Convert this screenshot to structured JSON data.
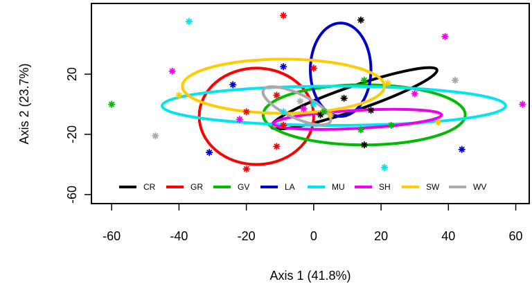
{
  "chart_data": {
    "type": "scatter",
    "title": "",
    "xlabel": "Axis 1 (41.8%)",
    "ylabel": "Axis 2 (23.7%)",
    "xlim": [
      -66,
      64
    ],
    "ylim": [
      -66,
      67
    ],
    "xticks": [
      -60,
      -40,
      -20,
      0,
      20,
      40,
      60
    ],
    "xtick_labels": [
      "-60",
      "-40",
      "-20",
      "0",
      "20",
      "40",
      "60"
    ],
    "yticks": [
      -60,
      -20,
      20
    ],
    "ytick_labels": [
      "-60",
      "-20",
      "20"
    ],
    "grid": false,
    "legend_position": "bottom",
    "series": [
      {
        "name": "CR",
        "color": "#000000",
        "points": [
          [
            14,
            56
          ],
          [
            9,
            4
          ],
          [
            2,
            -7
          ],
          [
            17,
            -4
          ],
          [
            15,
            -27
          ]
        ],
        "ellipse": {
          "cx": 12,
          "cy": 4,
          "rx": 26,
          "ry": 8,
          "angle": -19
        }
      },
      {
        "name": "GR",
        "color": "#ff0000",
        "points": [
          [
            -9,
            59
          ],
          [
            0,
            24
          ],
          [
            -11,
            6
          ],
          [
            -20,
            -5
          ],
          [
            -9,
            -14
          ],
          [
            -11,
            -28
          ],
          [
            -20,
            -43
          ]
        ],
        "ellipse": {
          "cx": -17,
          "cy": -8,
          "rx": 17,
          "ry": 32,
          "angle": 0
        }
      },
      {
        "name": "GV",
        "color": "#00bb00",
        "points": [
          [
            -60,
            0
          ],
          [
            15,
            16
          ],
          [
            14,
            -17
          ],
          [
            3,
            -5
          ],
          [
            23,
            -14
          ]
        ],
        "ellipse": {
          "cx": 15,
          "cy": -7,
          "rx": 30,
          "ry": 20,
          "angle": 0
        }
      },
      {
        "name": "LA",
        "color": "#0000cc",
        "points": [
          [
            -24,
            13
          ],
          [
            -9,
            25
          ],
          [
            -31,
            -32
          ],
          [
            44,
            -30
          ]
        ],
        "ellipse": {
          "cx": 8,
          "cy": 23,
          "rx": 9,
          "ry": 31,
          "angle": 0
        }
      },
      {
        "name": "MU",
        "color": "#00e5ee",
        "points": [
          [
            -37,
            55
          ],
          [
            -9,
            -5
          ],
          [
            0,
            0
          ],
          [
            21,
            -42
          ]
        ],
        "ellipse": {
          "cx": 6,
          "cy": -1,
          "rx": 51,
          "ry": 13,
          "angle": 0
        }
      },
      {
        "name": "SH",
        "color": "#ee00ee",
        "points": [
          [
            -42,
            22
          ],
          [
            39,
            45
          ],
          [
            30,
            7
          ],
          [
            62,
            0
          ],
          [
            -3,
            -3
          ],
          [
            -22,
            -10
          ]
        ],
        "ellipse": {
          "cx": 13,
          "cy": -10,
          "rx": 25,
          "ry": 6,
          "angle": -3
        }
      },
      {
        "name": "SW",
        "color": "#ffcc00",
        "points": [
          [
            -40,
            6
          ],
          [
            22,
            14
          ],
          [
            37,
            -12
          ],
          [
            5,
            -7
          ]
        ],
        "ellipse": {
          "cx": -9,
          "cy": 12,
          "rx": 30,
          "ry": 18,
          "angle": 0
        }
      },
      {
        "name": "WV",
        "color": "#aaaaaa",
        "points": [
          [
            -47,
            -21
          ],
          [
            42,
            16
          ],
          [
            -4,
            2
          ]
        ],
        "ellipse": {
          "cx": -5,
          "cy": -1,
          "rx": 11,
          "ry": 8,
          "angle": 25
        }
      }
    ]
  }
}
